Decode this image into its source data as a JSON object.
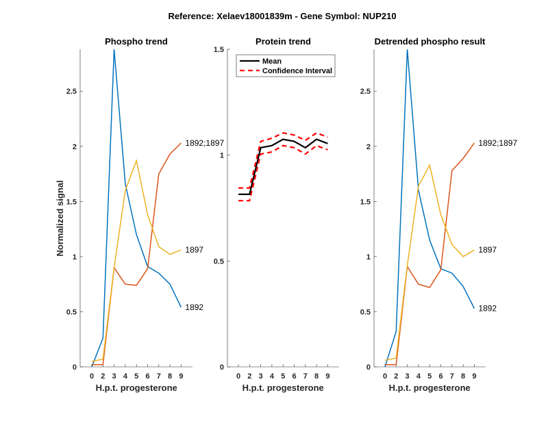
{
  "figure_title": "Reference:  Xelaev18001839m - Gene Symbol:  NUP210",
  "chart_data": [
    {
      "type": "line",
      "title": "Phospho trend",
      "xlabel": "H.p.t. progesterone",
      "ylabel": "Normalized signal",
      "categories": [
        "0",
        "2",
        "3",
        "4",
        "5",
        "6",
        "7",
        "8",
        "9"
      ],
      "ylim": [
        0,
        2.88
      ],
      "yticks": [
        "0",
        "0.5",
        "1",
        "1.5",
        "2",
        "2.5"
      ],
      "ytick_values": [
        0,
        0.5,
        1,
        1.5,
        2,
        2.5
      ],
      "series": [
        {
          "name": "1892",
          "color": "#0072BD",
          "values": [
            0.0,
            0.26,
            2.88,
            1.66,
            1.2,
            0.91,
            0.85,
            0.75,
            0.54
          ]
        },
        {
          "name": "1892;1897",
          "color": "#D95319",
          "values": [
            0.02,
            0.02,
            0.9,
            0.75,
            0.74,
            0.89,
            1.75,
            1.93,
            2.03
          ]
        },
        {
          "name": "1897",
          "color": "#EDB120",
          "values": [
            0.05,
            0.07,
            0.9,
            1.6,
            1.87,
            1.38,
            1.09,
            1.02,
            1.06
          ]
        }
      ]
    },
    {
      "type": "line",
      "title": "Protein trend",
      "xlabel": "H.p.t. progesterone",
      "ylabel": "",
      "categories": [
        "0",
        "2",
        "3",
        "4",
        "5",
        "6",
        "7",
        "8",
        "9"
      ],
      "ylim": [
        0,
        1.5
      ],
      "yticks": [
        "0",
        "0.5",
        "1",
        "1.5"
      ],
      "ytick_values": [
        0,
        0.5,
        1,
        1.5
      ],
      "legend": {
        "position": "top-left",
        "entries": [
          "Mean",
          "Confidence Interval"
        ]
      },
      "series": [
        {
          "name": "Mean",
          "color": "#000000",
          "style": "solid",
          "values": [
            0.815,
            0.815,
            1.035,
            1.045,
            1.075,
            1.065,
            1.035,
            1.075,
            1.055
          ]
        },
        {
          "name": "CI upper",
          "color": "#FF0000",
          "style": "dashed",
          "values": [
            0.845,
            0.845,
            1.065,
            1.08,
            1.105,
            1.095,
            1.07,
            1.105,
            1.085
          ]
        },
        {
          "name": "CI lower",
          "color": "#FF0000",
          "style": "dashed",
          "values": [
            0.785,
            0.785,
            1.005,
            1.015,
            1.045,
            1.035,
            1.005,
            1.045,
            1.025
          ]
        }
      ]
    },
    {
      "type": "line",
      "title": "Detrended phospho result",
      "xlabel": "H.p.t. progesterone",
      "ylabel": "",
      "categories": [
        "0",
        "2",
        "3",
        "4",
        "5",
        "6",
        "7",
        "8",
        "9"
      ],
      "ylim": [
        0,
        2.88
      ],
      "yticks": [
        "0",
        "0.5",
        "1",
        "1.5",
        "2",
        "2.5"
      ],
      "ytick_values": [
        0,
        0.5,
        1,
        1.5,
        2,
        2.5
      ],
      "series": [
        {
          "name": "1892",
          "color": "#0072BD",
          "values": [
            0.0,
            0.32,
            2.88,
            1.6,
            1.15,
            0.89,
            0.85,
            0.73,
            0.53
          ]
        },
        {
          "name": "1892;1897",
          "color": "#D95319",
          "values": [
            0.02,
            0.02,
            0.91,
            0.75,
            0.72,
            0.88,
            1.78,
            1.89,
            2.03
          ]
        },
        {
          "name": "1897",
          "color": "#EDB120",
          "values": [
            0.06,
            0.08,
            0.92,
            1.64,
            1.83,
            1.38,
            1.11,
            1.0,
            1.06
          ]
        }
      ]
    }
  ]
}
